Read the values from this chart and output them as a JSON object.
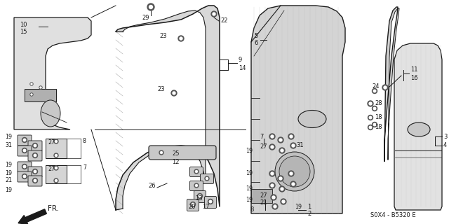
{
  "bg_color": "#ffffff",
  "watermark": "S0X4 - B5320 E",
  "fr_label": "FR.",
  "line_color": "#1a1a1a",
  "part_gray": "#c8c8c8",
  "part_light": "#e0e0e0",
  "part_mid": "#b0b0b0"
}
